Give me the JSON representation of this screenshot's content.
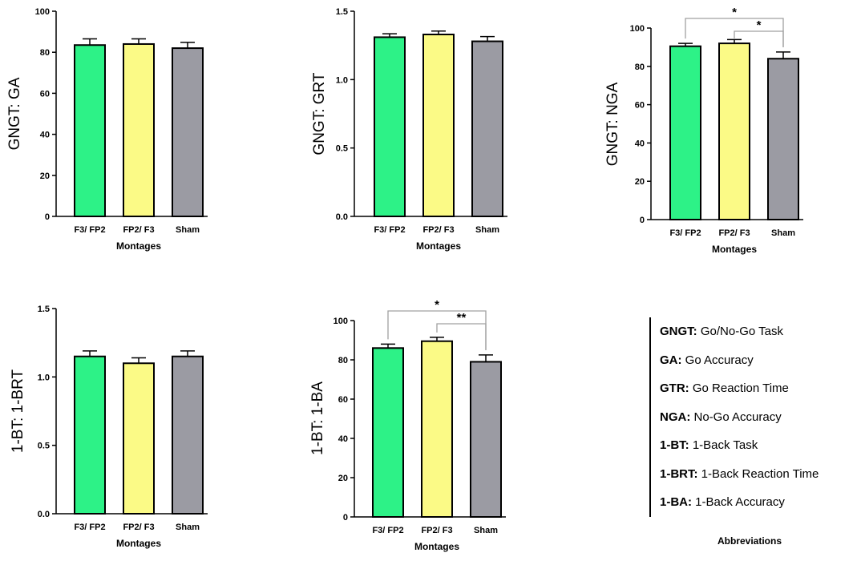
{
  "colors": {
    "bar1": "#2df287",
    "bar2": "#fbfa86",
    "bar3": "#9b9ba3",
    "stroke": "#000000",
    "bracket": "#a0a0a0"
  },
  "chart_data": [
    {
      "type": "bar",
      "title": "",
      "ylabel": "GNGT: GA",
      "xlabel": "Montages",
      "categories": [
        "F3/ FP2",
        "FP2/ F3",
        "Sham"
      ],
      "values": [
        83.5,
        84,
        82
      ],
      "errors": [
        3,
        2.5,
        2.8
      ],
      "ylim": [
        0,
        100
      ],
      "yticks": [
        "0",
        "20",
        "40",
        "60",
        "80",
        "100"
      ],
      "significance": []
    },
    {
      "type": "bar",
      "title": "",
      "ylabel": "GNGT: GRT",
      "xlabel": "Montages",
      "categories": [
        "F3/ FP2",
        "FP2/ F3",
        "Sham"
      ],
      "values": [
        1.31,
        1.33,
        1.28
      ],
      "errors": [
        0.025,
        0.025,
        0.035
      ],
      "ylim": [
        0,
        1.5
      ],
      "yticks": [
        "0.0",
        "0.5",
        "1.0",
        "1.5"
      ],
      "significance": []
    },
    {
      "type": "bar",
      "title": "",
      "ylabel": "GNGT: NGA",
      "xlabel": "Montages",
      "categories": [
        "F3/ FP2",
        "FP2/ F3",
        "Sham"
      ],
      "values": [
        90.5,
        92,
        84
      ],
      "errors": [
        1.5,
        2,
        3.5
      ],
      "ylim": [
        0,
        100
      ],
      "yticks": [
        "0",
        "20",
        "40",
        "60",
        "80",
        "100"
      ],
      "significance": [
        {
          "from": 0,
          "to": 2,
          "label": "*"
        },
        {
          "from": 1,
          "to": 2,
          "label": "*"
        }
      ]
    },
    {
      "type": "bar",
      "title": "",
      "ylabel": "1-BT: 1-BRT",
      "xlabel": "Montages",
      "categories": [
        "F3/ FP2",
        "FP2/ F3",
        "Sham"
      ],
      "values": [
        1.15,
        1.1,
        1.15
      ],
      "errors": [
        0.04,
        0.04,
        0.04
      ],
      "ylim": [
        0,
        1.5
      ],
      "yticks": [
        "0.0",
        "0.5",
        "1.0",
        "1.5"
      ],
      "significance": []
    },
    {
      "type": "bar",
      "title": "",
      "ylabel": "1-BT: 1-BA",
      "xlabel": "Montages",
      "categories": [
        "F3/ FP2",
        "FP2/ F3",
        "Sham"
      ],
      "values": [
        86,
        89.5,
        79
      ],
      "errors": [
        2,
        2,
        3.5
      ],
      "ylim": [
        0,
        100
      ],
      "yticks": [
        "0",
        "20",
        "40",
        "60",
        "80",
        "100"
      ],
      "significance": [
        {
          "from": 0,
          "to": 2,
          "label": "*"
        },
        {
          "from": 1,
          "to": 2,
          "label": "**"
        }
      ]
    }
  ],
  "legend": {
    "title": "Abbreviations",
    "items": [
      {
        "abbr": "GNGT:",
        "text": "Go/No-Go Task"
      },
      {
        "abbr": "GA:",
        "text": "Go Accuracy"
      },
      {
        "abbr": "GTR:",
        "text": "Go Reaction Time"
      },
      {
        "abbr": "NGA:",
        "text": "No-Go Accuracy"
      },
      {
        "abbr": "1-BT:",
        "text": "1-Back Task"
      },
      {
        "abbr": "1-BRT:",
        "text": "1-Back Reaction Time"
      },
      {
        "abbr": "1-BA:",
        "text": "1-Back Accuracy"
      }
    ]
  }
}
